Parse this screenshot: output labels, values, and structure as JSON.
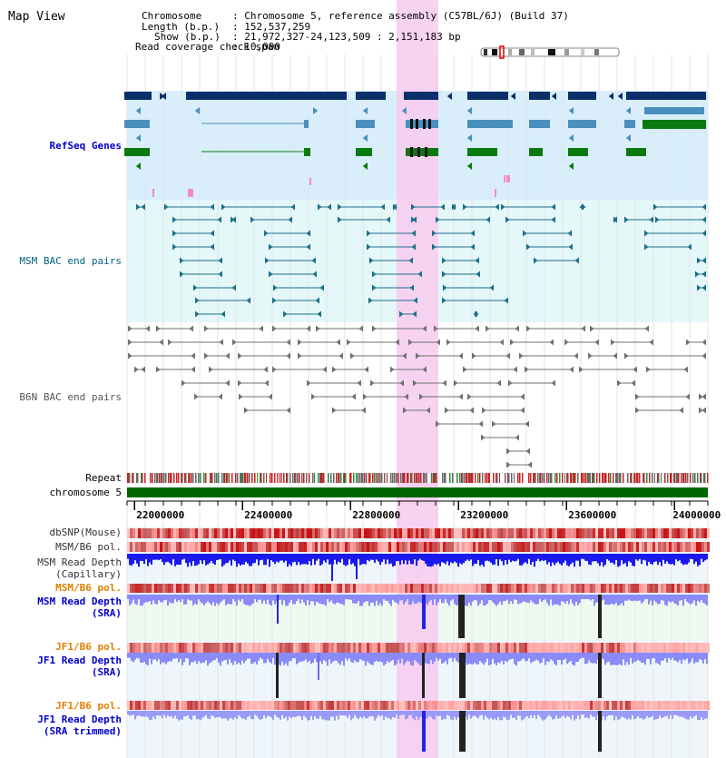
{
  "view_title": "Map View",
  "info": {
    "chromosome_label": "Chromosome",
    "chromosome_value": ": Chromosome 5, reference assembly (C57BL/6J) (Build 37)",
    "length_label": "Length (b.p.)",
    "length_value": ": 152,537,259",
    "show_label": "Show (b.p.)",
    "show_value": ": 21,972,327-24,123,509 : 2,151,183 bp",
    "coverage_label": "Read coverage check span",
    "coverage_value": ": 10,000"
  },
  "tracks": {
    "refseq": "RefSeq Genes",
    "msm_bac": "MSM BAC end pairs",
    "b6n_bac": "B6N BAC end pairs",
    "repeat": "Repeat",
    "chromosome": "chromosome 5",
    "dbsnp": "dbSNP(Mouse)",
    "msm_b6_pol_1": "MSM/B6 pol.",
    "msm_depth_cap_1": "MSM Read Depth",
    "msm_depth_cap_2": "(Capillary)",
    "msm_b6_pol_2": "MSM/B6 pol.",
    "msm_depth_sra_1": "MSM Read Depth",
    "msm_depth_sra_2": "(SRA)",
    "jf1_b6_pol_1": "JF1/B6 pol.",
    "jf1_depth_sra_1": "JF1 Read Depth",
    "jf1_depth_sra_2": "(SRA)",
    "jf1_b6_pol_2": "JF1/B6 pol.",
    "jf1_depth_trim_1": "JF1 Read Depth",
    "jf1_depth_trim_2": "(SRA trimmed)"
  },
  "axis": {
    "range": [
      21972327,
      24123509
    ],
    "ticks": [
      {
        "pos": 22000000,
        "label": "22000000"
      },
      {
        "pos": 22400000,
        "label": "22400000"
      },
      {
        "pos": 22800000,
        "label": "22800000"
      },
      {
        "pos": 23200000,
        "label": "23200000"
      },
      {
        "pos": 23600000,
        "label": "23600000"
      },
      {
        "pos": 24000000,
        "label": "24000000"
      }
    ]
  },
  "highlight_region": [
    22965000,
    23120000
  ],
  "colors": {
    "refseq_label": "#0000cc",
    "msm_label": "#006080",
    "b6n_label": "#555555",
    "pol_label_orange": "#e08000",
    "depth_label_blue": "#0000cc",
    "highlight": "#f7cdef",
    "refseq_bg": "#d8eefb",
    "msm_bg": "#e4f7f9",
    "chromosome_bar": "#006600",
    "refseq_dark": "#0a2f6a",
    "refseq_mid": "#4a8fbd",
    "refseq_green": "#0a7a10"
  }
}
